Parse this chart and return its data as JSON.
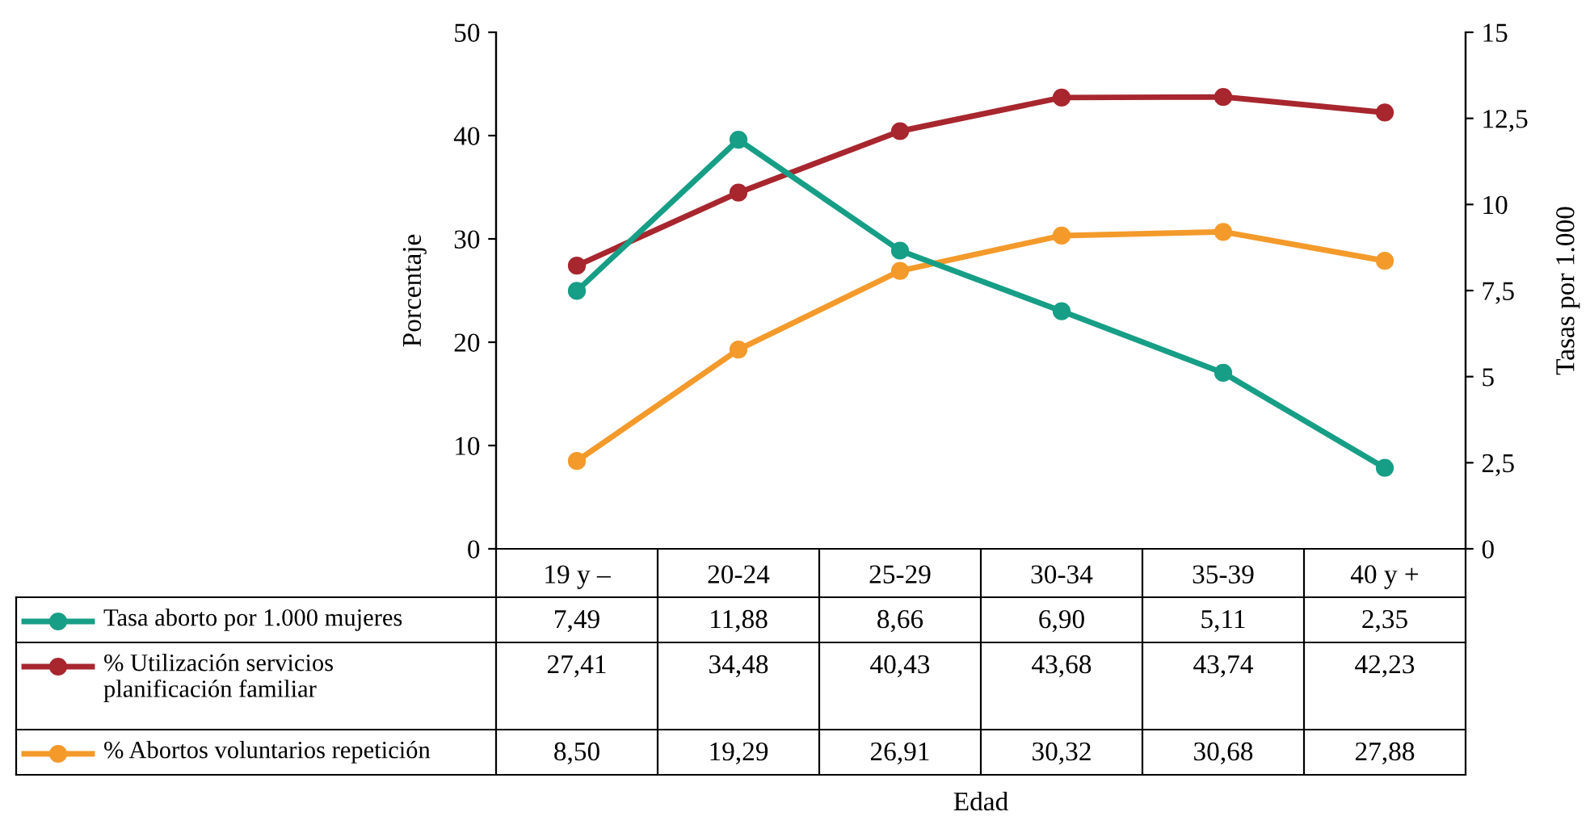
{
  "chart_data": {
    "type": "line",
    "annotations": [
      "Edad"
    ],
    "ylabel": "Porcentaje",
    "y2label": "Tasas por 1.000",
    "categories": [
      "19 y –",
      "20-24",
      "25-29",
      "30-34",
      "35-39",
      "40 y +"
    ],
    "ylim": [
      0,
      50
    ],
    "yticks": [
      0,
      10,
      20,
      30,
      40,
      50
    ],
    "y2lim": [
      0,
      15
    ],
    "y2ticks": [
      0,
      {
        "value": 2.5,
        "label": "2,5"
      },
      5,
      {
        "value": 7.5,
        "label": "7,5"
      },
      10,
      {
        "value": 12.5,
        "label": "12,5"
      },
      15
    ],
    "marker": "circle",
    "line_style": "solid",
    "grid": false,
    "legend": "bottom",
    "series": [
      {
        "name": "Tasa aborto por 1.000 mujeres",
        "color": "#179e86",
        "axis": "y2",
        "values": [
          7.49,
          11.88,
          8.66,
          6.9,
          5.11,
          2.35
        ],
        "value_labels": [
          "7,49",
          "11,88",
          "8,66",
          "6,90",
          "5,11",
          "2,35"
        ]
      },
      {
        "name": "% Utilización servicios\nplanificación familiar",
        "color": "#a8262e",
        "values": [
          27.41,
          34.48,
          40.43,
          43.68,
          43.74,
          42.23
        ],
        "value_labels": [
          "27,41",
          "34,48",
          "40,43",
          "43,68",
          "43,74",
          "42,23"
        ]
      },
      {
        "name": "% Abortos voluntarios repetición",
        "color": "#f39a2b",
        "values": [
          8.5,
          19.29,
          26.91,
          30.32,
          30.68,
          27.88
        ],
        "value_labels": [
          "8,50",
          "19,29",
          "26,91",
          "30,32",
          "30,68",
          "27,88"
        ]
      }
    ]
  }
}
